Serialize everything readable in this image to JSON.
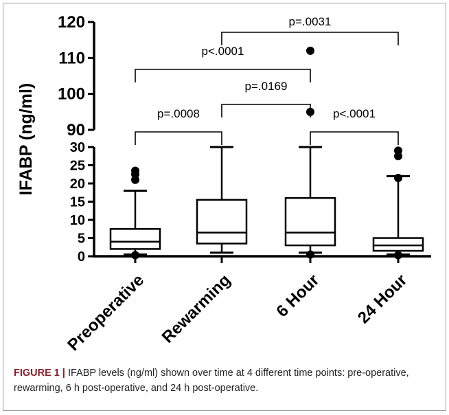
{
  "chart_data": {
    "type": "box",
    "ylabel": "IFABP (ng/ml)",
    "categories": [
      "Preoperative",
      "Rewarming",
      "6 Hour",
      "24 Hour"
    ],
    "y_axis_broken": true,
    "y_lower_range": [
      0,
      30
    ],
    "y_upper_range": [
      90,
      120
    ],
    "y_ticks_lower": [
      "0",
      "5",
      "10",
      "15",
      "20",
      "25",
      "30"
    ],
    "y_ticks_upper": [
      "90",
      "100",
      "110",
      "120"
    ],
    "boxes": [
      {
        "category": "Preoperative",
        "whisker_low": 0.5,
        "q1": 2,
        "median": 4,
        "q3": 7.5,
        "whisker_high": 18,
        "outliers": [
          0.3,
          21,
          22.5,
          23.5
        ]
      },
      {
        "category": "Rewarming",
        "whisker_low": 1,
        "q1": 3.5,
        "median": 6.5,
        "q3": 15.5,
        "whisker_high": 30,
        "outliers": []
      },
      {
        "category": "6 Hour",
        "whisker_low": 1,
        "q1": 3,
        "median": 6.5,
        "q3": 16,
        "whisker_high": 30,
        "outliers": [
          0.5,
          95,
          112
        ]
      },
      {
        "category": "24 Hour",
        "whisker_low": 0.5,
        "q1": 1.5,
        "median": 3,
        "q3": 5,
        "whisker_high": 22,
        "outliers": [
          0.3,
          21.5,
          27.5,
          29
        ]
      }
    ],
    "comparisons": [
      {
        "from": "Preoperative",
        "to": "Rewarming",
        "label": "p=.0008"
      },
      {
        "from": "Rewarming",
        "to": "6 Hour",
        "label": "p=.0169"
      },
      {
        "from": "6 Hour",
        "to": "24 Hour",
        "label": "p<.0001"
      },
      {
        "from": "Preoperative",
        "to": "6 Hour",
        "label": "p<.0001"
      },
      {
        "from": "Rewarming",
        "to": "24 Hour",
        "label": "p=.0031"
      }
    ]
  },
  "caption": {
    "lead": "FIGURE 1 |",
    "text": " IFABP levels (ng/ml) shown over time at 4 different time points: pre-operative, rewarming, 6 h post-operative, and 24 h post-operative."
  }
}
